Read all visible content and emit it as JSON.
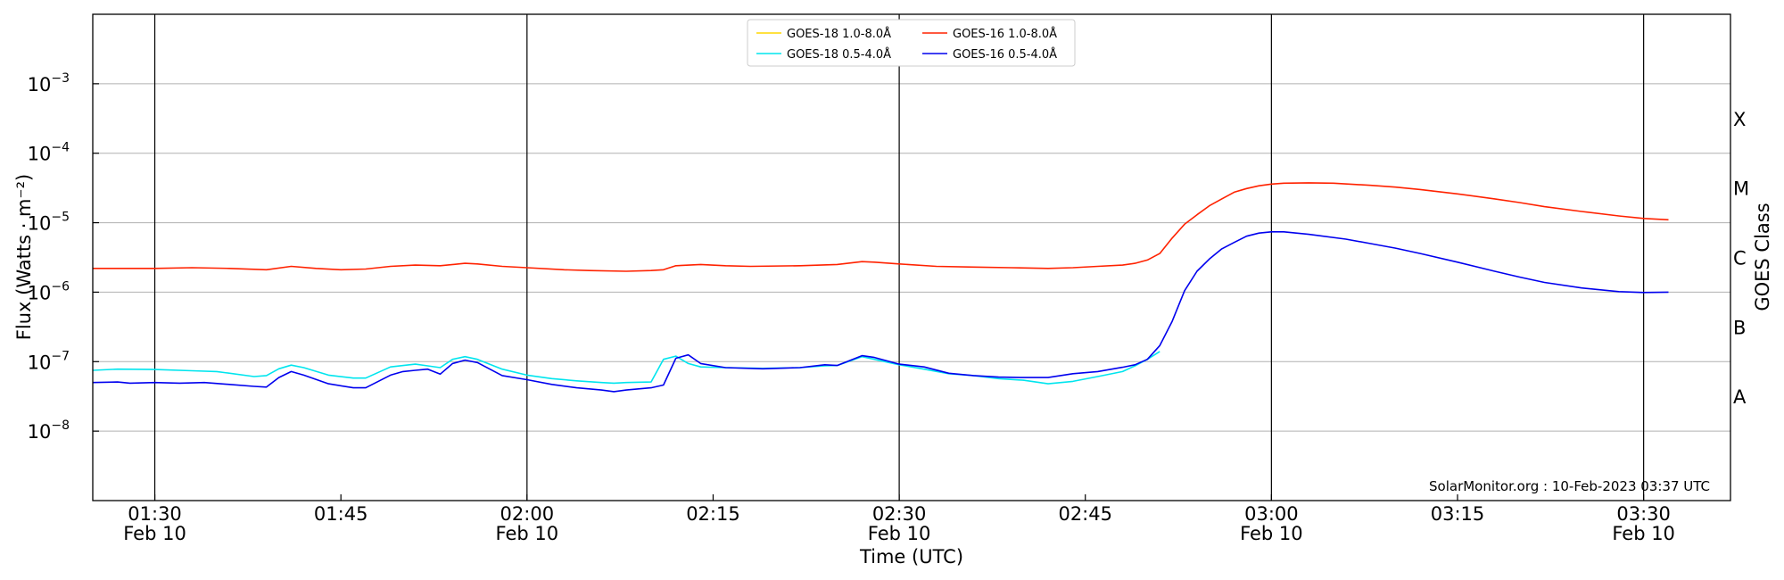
{
  "chart_data": {
    "type": "line",
    "xlabel": "Time (UTC)",
    "ylabel": "Flux (Watts · m⁻²)",
    "ylabel_right": "GOES Class",
    "credit": "SolarMonitor.org : 10-Feb-2023 03:37 UTC",
    "y_scale": "log",
    "ylim": [
      1e-09,
      0.01
    ],
    "xlim": [
      "01:25",
      "03:37"
    ],
    "grid": true,
    "legend_position": "top-center",
    "x_ticks": [
      {
        "time": "01:30",
        "label": "01:30",
        "sublabel": "Feb 10"
      },
      {
        "time": "01:45",
        "label": "01:45",
        "sublabel": ""
      },
      {
        "time": "02:00",
        "label": "02:00",
        "sublabel": "Feb 10"
      },
      {
        "time": "02:15",
        "label": "02:15",
        "sublabel": ""
      },
      {
        "time": "02:30",
        "label": "02:30",
        "sublabel": "Feb 10"
      },
      {
        "time": "02:45",
        "label": "02:45",
        "sublabel": ""
      },
      {
        "time": "03:00",
        "label": "03:00",
        "sublabel": "Feb 10"
      },
      {
        "time": "03:15",
        "label": "03:15",
        "sublabel": ""
      },
      {
        "time": "03:30",
        "label": "03:30",
        "sublabel": "Feb 10"
      }
    ],
    "vertical_lines": [
      "01:30",
      "02:00",
      "02:30",
      "03:00",
      "03:30"
    ],
    "y_ticks": [
      {
        "value": 1e-08,
        "base": "10",
        "exp": "−8"
      },
      {
        "value": 1e-07,
        "base": "10",
        "exp": "−7"
      },
      {
        "value": 1e-06,
        "base": "10",
        "exp": "−6"
      },
      {
        "value": 1e-05,
        "base": "10",
        "exp": "−5"
      },
      {
        "value": 0.0001,
        "base": "10",
        "exp": "−4"
      },
      {
        "value": 0.001,
        "base": "10",
        "exp": "−3"
      }
    ],
    "goes_classes": [
      {
        "label": "A",
        "value": 3.16e-08
      },
      {
        "label": "B",
        "value": 3.16e-07
      },
      {
        "label": "C",
        "value": 3.16e-06
      },
      {
        "label": "M",
        "value": 3.16e-05
      },
      {
        "label": "X",
        "value": 0.000316
      }
    ],
    "series": [
      {
        "name": "GOES-18 1.0-8.0Å",
        "color": "#ffd700",
        "x": [],
        "y": []
      },
      {
        "name": "GOES-18 0.5-4.0Å",
        "color": "#00e5ee",
        "x": [
          "01:25",
          "01:27",
          "01:30",
          "01:33",
          "01:35",
          "01:38",
          "01:39",
          "01:40",
          "01:41",
          "01:42",
          "01:44",
          "01:46",
          "01:47",
          "01:49",
          "01:51",
          "01:52",
          "01:53",
          "01:54",
          "01:55",
          "01:56",
          "01:58",
          "02:00",
          "02:02",
          "02:04",
          "02:06",
          "02:07",
          "02:08",
          "02:10",
          "02:11",
          "02:12",
          "02:13",
          "02:14",
          "02:16",
          "02:19",
          "02:22",
          "02:24",
          "02:25",
          "02:27",
          "02:28",
          "02:30",
          "02:32",
          "02:34",
          "02:36",
          "02:38",
          "02:40",
          "02:42",
          "02:44",
          "02:46",
          "02:48",
          "02:49",
          "02:50",
          "02:51"
        ],
        "y": [
          7.5e-08,
          7.8e-08,
          7.7e-08,
          7.4e-08,
          7.2e-08,
          6.1e-08,
          6.3e-08,
          7.9e-08,
          8.9e-08,
          8.2e-08,
          6.4e-08,
          5.8e-08,
          5.8e-08,
          8.4e-08,
          9.2e-08,
          8.7e-08,
          8.2e-08,
          1.08e-07,
          1.18e-07,
          1.08e-07,
          7.8e-08,
          6.4e-08,
          5.7e-08,
          5.3e-08,
          5e-08,
          4.9e-08,
          5e-08,
          5.1e-08,
          1.08e-07,
          1.2e-07,
          9.4e-08,
          8.4e-08,
          8.2e-08,
          8e-08,
          8.2e-08,
          8.7e-08,
          8.8e-08,
          1.18e-07,
          1.08e-07,
          9e-08,
          7.8e-08,
          6.7e-08,
          6.3e-08,
          5.7e-08,
          5.4e-08,
          4.8e-08,
          5.2e-08,
          6.1e-08,
          7.2e-08,
          8.7e-08,
          1.08e-07,
          1.4e-07
        ]
      },
      {
        "name": "GOES-16 1.0-8.0Å",
        "color": "#ff2200",
        "x": [
          "01:25",
          "01:30",
          "01:33",
          "01:36",
          "01:39",
          "01:41",
          "01:43",
          "01:45",
          "01:47",
          "01:49",
          "01:51",
          "01:53",
          "01:55",
          "01:56",
          "01:58",
          "02:00",
          "02:03",
          "02:05",
          "02:08",
          "02:10",
          "02:11",
          "02:12",
          "02:14",
          "02:16",
          "02:18",
          "02:22",
          "02:25",
          "02:27",
          "02:28",
          "02:30",
          "02:33",
          "02:36",
          "02:39",
          "02:42",
          "02:44",
          "02:46",
          "02:48",
          "02:49",
          "02:50",
          "02:51",
          "02:52",
          "02:53",
          "02:54",
          "02:55",
          "02:56",
          "02:57",
          "02:58",
          "02:59",
          "03:00",
          "03:01",
          "03:03",
          "03:05",
          "03:08",
          "03:10",
          "03:12",
          "03:15",
          "03:18",
          "03:20",
          "03:22",
          "03:25",
          "03:28",
          "03:30",
          "03:32"
        ],
        "y": [
          2.2e-06,
          2.2e-06,
          2.25e-06,
          2.2e-06,
          2.1e-06,
          2.35e-06,
          2.2e-06,
          2.1e-06,
          2.15e-06,
          2.35e-06,
          2.45e-06,
          2.4e-06,
          2.6e-06,
          2.55e-06,
          2.35e-06,
          2.25e-06,
          2.1e-06,
          2.05e-06,
          2e-06,
          2.05e-06,
          2.1e-06,
          2.4e-06,
          2.5e-06,
          2.4e-06,
          2.35e-06,
          2.4e-06,
          2.5e-06,
          2.75e-06,
          2.7e-06,
          2.55e-06,
          2.35e-06,
          2.3e-06,
          2.25e-06,
          2.2e-06,
          2.25e-06,
          2.35e-06,
          2.45e-06,
          2.6e-06,
          2.9e-06,
          3.6e-06,
          6e-06,
          9.5e-06,
          1.3e-05,
          1.75e-05,
          2.2e-05,
          2.75e-05,
          3.1e-05,
          3.4e-05,
          3.6e-05,
          3.7e-05,
          3.75e-05,
          3.7e-05,
          3.45e-05,
          3.25e-05,
          3e-05,
          2.6e-05,
          2.2e-05,
          1.95e-05,
          1.7e-05,
          1.45e-05,
          1.25e-05,
          1.15e-05,
          1.1e-05
        ]
      },
      {
        "name": "GOES-16 0.5-4.0Å",
        "color": "#0000ee",
        "x": [
          "01:25",
          "01:27",
          "01:28",
          "01:30",
          "01:32",
          "01:34",
          "01:36",
          "01:38",
          "01:39",
          "01:40",
          "01:41",
          "01:42",
          "01:44",
          "01:46",
          "01:47",
          "01:49",
          "01:50",
          "01:51",
          "01:52",
          "01:53",
          "01:54",
          "01:55",
          "01:56",
          "01:58",
          "02:00",
          "02:02",
          "02:04",
          "02:06",
          "02:07",
          "02:08",
          "02:10",
          "02:11",
          "02:12",
          "02:13",
          "02:14",
          "02:16",
          "02:19",
          "02:22",
          "02:24",
          "02:25",
          "02:27",
          "02:28",
          "02:30",
          "02:32",
          "02:34",
          "02:36",
          "02:38",
          "02:40",
          "02:42",
          "02:44",
          "02:46",
          "02:48",
          "02:49",
          "02:50",
          "02:51",
          "02:52",
          "02:53",
          "02:54",
          "02:55",
          "02:56",
          "02:57",
          "02:58",
          "02:59",
          "03:00",
          "03:01",
          "03:03",
          "03:06",
          "03:08",
          "03:10",
          "03:12",
          "03:15",
          "03:18",
          "03:20",
          "03:22",
          "03:25",
          "03:28",
          "03:30",
          "03:32"
        ],
        "y": [
          5e-08,
          5.1e-08,
          4.9e-08,
          5e-08,
          4.9e-08,
          5e-08,
          4.7e-08,
          4.4e-08,
          4.3e-08,
          5.9e-08,
          7.2e-08,
          6.4e-08,
          4.8e-08,
          4.2e-08,
          4.2e-08,
          6.4e-08,
          7.2e-08,
          7.5e-08,
          7.8e-08,
          6.6e-08,
          9.4e-08,
          1.05e-07,
          9.7e-08,
          6.3e-08,
          5.5e-08,
          4.7e-08,
          4.2e-08,
          3.9e-08,
          3.7e-08,
          3.9e-08,
          4.2e-08,
          4.6e-08,
          1.12e-07,
          1.25e-07,
          9.4e-08,
          8.2e-08,
          7.9e-08,
          8.2e-08,
          9e-08,
          8.8e-08,
          1.22e-07,
          1.15e-07,
          9.2e-08,
          8.4e-08,
          6.8e-08,
          6.3e-08,
          6e-08,
          5.9e-08,
          5.9e-08,
          6.7e-08,
          7.2e-08,
          8.3e-08,
          9e-08,
          1.08e-07,
          1.7e-07,
          3.8e-07,
          1.05e-06,
          2e-06,
          3e-06,
          4.2e-06,
          5.2e-06,
          6.4e-06,
          7.1e-06,
          7.4e-06,
          7.4e-06,
          6.8e-06,
          5.8e-06,
          5e-06,
          4.3e-06,
          3.6e-06,
          2.7e-06,
          2e-06,
          1.65e-06,
          1.38e-06,
          1.15e-06,
          1.02e-06,
          9.9e-07,
          1e-06
        ]
      }
    ]
  }
}
